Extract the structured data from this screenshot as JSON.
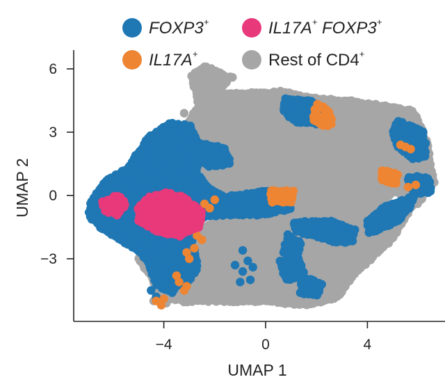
{
  "chart_data": {
    "type": "scatter",
    "title": "",
    "xlabel": "UMAP 1",
    "ylabel": "UMAP 2",
    "xlim": [
      -7.5,
      7.5
    ],
    "ylim": [
      -5.8,
      6.8
    ],
    "xticks": [
      -4,
      0,
      4
    ],
    "xtick_labels": [
      "−4",
      "0",
      "4"
    ],
    "yticks": [
      -3,
      0,
      3,
      6
    ],
    "ytick_labels": [
      "−3",
      "0",
      "3",
      "6"
    ],
    "legend": "top",
    "grid": false,
    "series": [
      {
        "name": "Rest of CD4",
        "name_sup": "+",
        "italic": false,
        "color": "#a6a6a6",
        "regions": [
          {
            "polygon": [
              [
                -4.2,
                -4.4
              ],
              [
                -5.0,
                -3.0
              ],
              [
                -3.4,
                -1.0
              ],
              [
                -2.4,
                -0.8
              ],
              [
                -1.6,
                -0.3
              ],
              [
                0.5,
                0.5
              ],
              [
                1.8,
                -1.8
              ],
              [
                3.5,
                -2.5
              ],
              [
                4.0,
                -1.2
              ],
              [
                5.0,
                0.2
              ],
              [
                6.4,
                1.2
              ],
              [
                6.4,
                2.3
              ],
              [
                5.8,
                4.0
              ],
              [
                3.2,
                4.5
              ],
              [
                1.0,
                4.3
              ],
              [
                -2.0,
                4.6
              ],
              [
                -1.4,
                5.6
              ],
              [
                -2.3,
                6.1
              ],
              [
                -2.9,
                5.7
              ],
              [
                -2.6,
                4.3
              ],
              [
                -3.0,
                3.4
              ],
              [
                -2.7,
                2.4
              ],
              [
                -2.9,
                0.6
              ],
              [
                -3.3,
                -0.5
              ],
              [
                -3.9,
                -2.0
              ],
              [
                -3.6,
                -4.0
              ]
            ],
            "density": 1.4
          },
          {
            "polygon": [
              [
                -4.0,
                -4.8
              ],
              [
                -3.4,
                -3.5
              ],
              [
                -2.6,
                -1.6
              ],
              [
                -1.6,
                -1.0
              ],
              [
                0.0,
                -0.7
              ],
              [
                1.5,
                -0.4
              ],
              [
                3.5,
                -0.6
              ],
              [
                4.6,
                -0.9
              ],
              [
                5.6,
                -0.6
              ],
              [
                6.2,
                0.4
              ],
              [
                5.0,
                -2.0
              ],
              [
                3.6,
                -3.6
              ],
              [
                2.8,
                -4.8
              ],
              [
                1.6,
                -5.2
              ],
              [
                0.0,
                -5.0
              ],
              [
                -1.8,
                -5.0
              ],
              [
                -3.2,
                -5.0
              ]
            ],
            "density": 1.4
          },
          {
            "polygon": [
              [
                -2.8,
                3.0
              ],
              [
                -1.6,
                4.8
              ],
              [
                0.6,
                4.9
              ],
              [
                1.8,
                4.6
              ],
              [
                3.0,
                4.5
              ],
              [
                4.8,
                4.1
              ],
              [
                5.9,
                3.6
              ],
              [
                6.4,
                2.0
              ],
              [
                6.6,
                0.6
              ],
              [
                6.0,
                -0.4
              ],
              [
                4.8,
                0.4
              ],
              [
                2.6,
                0.9
              ],
              [
                0.6,
                0.4
              ],
              [
                -1.0,
                0.8
              ],
              [
                -2.2,
                1.2
              ],
              [
                -2.7,
                2.0
              ]
            ],
            "density": 1.6
          }
        ],
        "points": [
          [
            -2.4,
            6.1
          ],
          [
            -1.9,
            5.8
          ],
          [
            -1.3,
            5.6
          ],
          [
            -2.8,
            5.4
          ],
          [
            -3.0,
            3.5
          ],
          [
            -3.2,
            3.9
          ],
          [
            -3.3,
            3.2
          ],
          [
            -4.2,
            -4.7
          ],
          [
            -4.4,
            -5.0
          ],
          [
            -3.9,
            -5.1
          ],
          [
            -0.9,
            -4.6
          ],
          [
            -0.6,
            -4.4
          ],
          [
            -1.2,
            -4.5
          ],
          [
            -0.8,
            -4.9
          ],
          [
            -0.3,
            -4.8
          ],
          [
            0.1,
            -4.6
          ],
          [
            -1.4,
            -4.0
          ],
          [
            -1.7,
            -3.9
          ],
          [
            -1.0,
            -4.3
          ],
          [
            0.8,
            -4.9
          ],
          [
            1.2,
            -5.0
          ],
          [
            -4.7,
            1.5
          ],
          [
            -4.9,
            1.3
          ],
          [
            -5.2,
            1.6
          ],
          [
            -3.5,
            2.7
          ],
          [
            -3.2,
            2.4
          ],
          [
            -1.5,
            -2.0
          ],
          [
            -1.1,
            -1.8
          ],
          [
            -0.9,
            -2.4
          ],
          [
            -0.6,
            -1.9
          ],
          [
            -0.5,
            -2.6
          ],
          [
            -1.1,
            -2.9
          ],
          [
            -0.7,
            -1.5
          ],
          [
            -0.3,
            -1.7
          ]
        ]
      },
      {
        "name": "FOXP3",
        "name_sup": "+",
        "italic": true,
        "color": "#1f77b4",
        "regions": [
          {
            "polygon": [
              [
                -6.9,
                -0.4
              ],
              [
                -6.3,
                0.7
              ],
              [
                -5.4,
                1.3
              ],
              [
                -4.6,
                2.7
              ],
              [
                -3.8,
                3.4
              ],
              [
                -3.0,
                3.3
              ],
              [
                -2.6,
                2.3
              ],
              [
                -2.7,
                1.0
              ],
              [
                -2.2,
                0.3
              ],
              [
                -1.6,
                -0.1
              ],
              [
                0.0,
                0.2
              ],
              [
                0.8,
                0.0
              ],
              [
                1.0,
                -0.6
              ],
              [
                -0.2,
                -0.9
              ],
              [
                -1.8,
                -0.9
              ],
              [
                -2.7,
                -1.1
              ],
              [
                -3.0,
                -2.5
              ],
              [
                -3.2,
                -3.8
              ],
              [
                -3.7,
                -4.6
              ],
              [
                -4.3,
                -4.2
              ],
              [
                -4.6,
                -3.2
              ],
              [
                -5.0,
                -2.6
              ],
              [
                -6.4,
                -1.6
              ],
              [
                -6.9,
                -1.0
              ]
            ],
            "density": 1.4
          },
          {
            "polygon": [
              [
                -3.0,
                2.6
              ],
              [
                -1.6,
                2.2
              ],
              [
                -1.4,
                1.5
              ],
              [
                -2.2,
                1.4
              ],
              [
                -2.8,
                1.8
              ]
            ],
            "density": 1.8
          },
          {
            "polygon": [
              [
                -3.6,
                -2.5
              ],
              [
                -2.8,
                -2.6
              ],
              [
                -2.7,
                -3.5
              ],
              [
                -3.2,
                -4.3
              ],
              [
                -3.8,
                -4.2
              ],
              [
                -3.6,
                -3.0
              ]
            ],
            "density": 1.8
          },
          {
            "polygon": [
              [
                0.8,
                4.6
              ],
              [
                1.8,
                4.5
              ],
              [
                2.4,
                3.9
              ],
              [
                2.0,
                3.4
              ],
              [
                1.2,
                3.5
              ],
              [
                0.7,
                4.0
              ]
            ],
            "density": 1.8
          },
          {
            "polygon": [
              [
                5.2,
                3.5
              ],
              [
                6.2,
                3.0
              ],
              [
                6.3,
                1.9
              ],
              [
                5.8,
                1.7
              ],
              [
                5.2,
                2.3
              ],
              [
                5.0,
                3.0
              ]
            ],
            "density": 1.8
          },
          {
            "polygon": [
              [
                5.6,
                0.9
              ],
              [
                6.4,
                0.8
              ],
              [
                6.5,
                0.2
              ],
              [
                5.8,
                0.1
              ]
            ],
            "density": 2.0
          },
          {
            "polygon": [
              [
                4.1,
                -1.8
              ],
              [
                5.2,
                -1.2
              ],
              [
                5.6,
                -0.6
              ],
              [
                5.8,
                -0.1
              ],
              [
                5.4,
                -0.2
              ],
              [
                4.6,
                -0.6
              ],
              [
                4.0,
                -1.2
              ]
            ],
            "density": 1.8
          },
          {
            "polygon": [
              [
                1.1,
                -1.3
              ],
              [
                2.4,
                -1.2
              ],
              [
                3.0,
                -1.4
              ],
              [
                3.5,
                -1.6
              ],
              [
                3.4,
                -2.2
              ],
              [
                2.8,
                -2.2
              ],
              [
                1.9,
                -1.9
              ],
              [
                1.2,
                -1.7
              ]
            ],
            "density": 1.8
          },
          {
            "polygon": [
              [
                0.6,
                -3.1
              ],
              [
                1.3,
                -3.0
              ],
              [
                1.5,
                -3.8
              ],
              [
                0.8,
                -4.0
              ]
            ],
            "density": 2.0
          },
          {
            "polygon": [
              [
                0.9,
                -1.9
              ],
              [
                1.4,
                -2.3
              ],
              [
                1.2,
                -2.9
              ],
              [
                0.7,
                -2.7
              ]
            ],
            "density": 2.0
          },
          {
            "polygon": [
              [
                1.4,
                -3.8
              ],
              [
                2.2,
                -4.2
              ],
              [
                2.0,
                -4.7
              ],
              [
                1.4,
                -4.6
              ]
            ],
            "density": 2.0
          }
        ],
        "points": [
          [
            -0.9,
            -2.6
          ],
          [
            -0.7,
            -3.1
          ],
          [
            -0.9,
            -3.6
          ],
          [
            -1.2,
            -3.3
          ],
          [
            -0.5,
            -3.4
          ],
          [
            -1.0,
            -4.1
          ],
          [
            -0.6,
            -4.0
          ],
          [
            -4.3,
            -4.8
          ],
          [
            -4.5,
            -4.5
          ]
        ]
      },
      {
        "name": "IL17A",
        "name_sup": "+",
        "italic": true,
        "color": "#ee8533",
        "regions": [
          {
            "polygon": [
              [
                2.0,
                4.3
              ],
              [
                2.5,
                4.0
              ],
              [
                2.6,
                3.4
              ],
              [
                2.3,
                3.3
              ],
              [
                1.9,
                3.6
              ]
            ],
            "density": 2.2
          },
          {
            "polygon": [
              [
                4.6,
                1.2
              ],
              [
                5.2,
                1.0
              ],
              [
                5.1,
                0.6
              ],
              [
                4.6,
                0.7
              ]
            ],
            "density": 2.2
          },
          {
            "polygon": [
              [
                0.2,
                0.2
              ],
              [
                1.1,
                0.2
              ],
              [
                1.0,
                -0.3
              ],
              [
                0.3,
                -0.3
              ]
            ],
            "density": 2.2
          }
        ],
        "points": [
          [
            5.5,
            2.3
          ],
          [
            5.7,
            2.2
          ],
          [
            5.3,
            2.4
          ],
          [
            5.9,
            0.5
          ],
          [
            5.6,
            0.4
          ],
          [
            -2.7,
            -1.9
          ],
          [
            -2.5,
            -2.1
          ],
          [
            -2.8,
            -2.5
          ],
          [
            -3.1,
            -2.7
          ],
          [
            -3.0,
            -3.0
          ],
          [
            -2.4,
            -0.4
          ],
          [
            -2.2,
            -0.6
          ],
          [
            -3.4,
            -4.1
          ],
          [
            -3.1,
            -4.3
          ],
          [
            -3.2,
            -4.5
          ],
          [
            -3.5,
            -3.8
          ],
          [
            -4.0,
            -4.9
          ],
          [
            -4.3,
            -5.0
          ],
          [
            -4.1,
            -5.2
          ],
          [
            -2.0,
            -0.2
          ]
        ]
      },
      {
        "name": "IL17A",
        "name_sup": "+",
        "name2": "FOXP3",
        "name2_sup": "+",
        "italic": true,
        "color": "#e8397a",
        "regions": [
          {
            "polygon": [
              [
                -5.0,
                -0.6
              ],
              [
                -4.6,
                -0.1
              ],
              [
                -3.9,
                0.1
              ],
              [
                -3.2,
                -0.1
              ],
              [
                -2.5,
                -0.8
              ],
              [
                -2.6,
                -1.5
              ],
              [
                -3.4,
                -1.9
              ],
              [
                -4.3,
                -1.7
              ],
              [
                -5.0,
                -1.2
              ]
            ],
            "density": 1.3
          },
          {
            "polygon": [
              [
                -6.4,
                -0.3
              ],
              [
                -5.8,
                0.0
              ],
              [
                -5.5,
                -0.4
              ],
              [
                -5.8,
                -0.9
              ],
              [
                -6.3,
                -0.7
              ]
            ],
            "density": 1.6
          }
        ],
        "points": []
      }
    ]
  }
}
